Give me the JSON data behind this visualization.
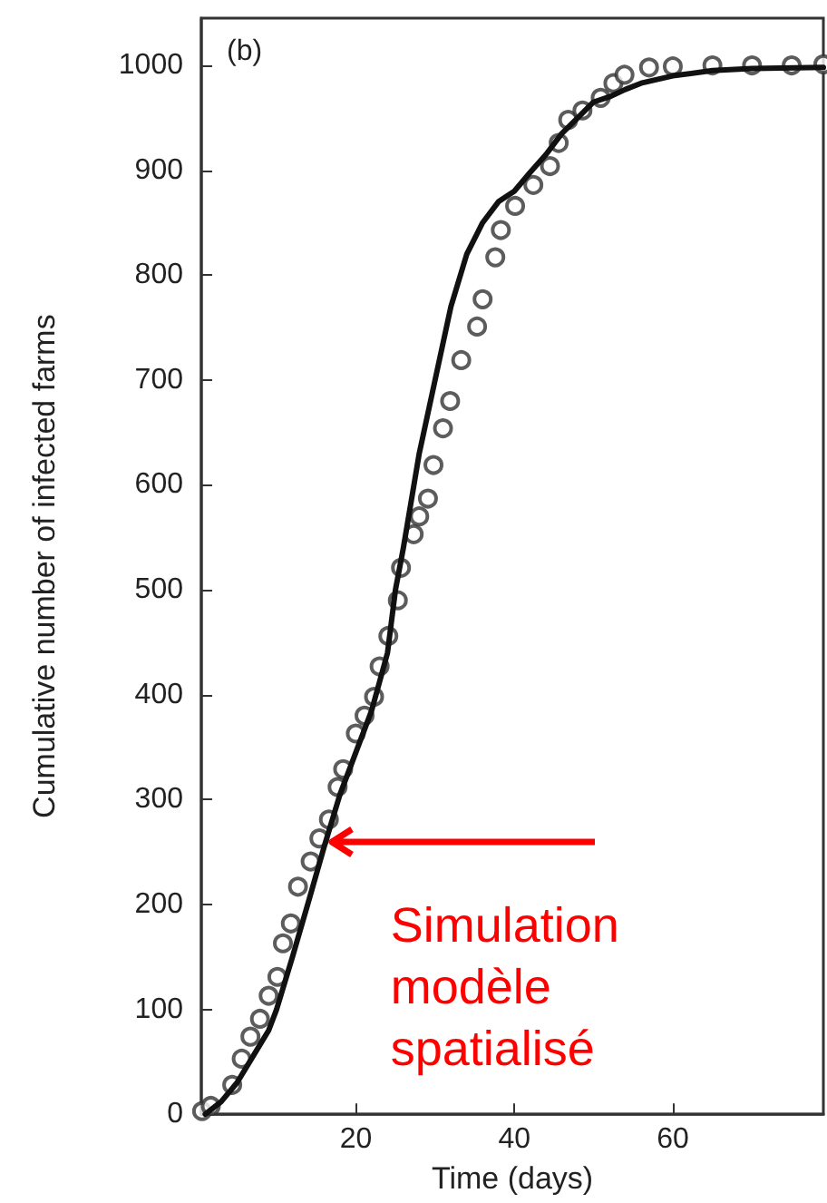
{
  "chart_data": {
    "type": "line",
    "xlabel": "Time (days)",
    "ylabel": "Cumulative number of infected farms",
    "xlim": [
      0.5,
      79
    ],
    "xticks": [
      20,
      40,
      60
    ],
    "ylim": [
      0,
      1045
    ],
    "yticks": [
      0,
      100,
      200,
      300,
      400,
      500,
      600,
      700,
      800,
      900,
      1000
    ],
    "grid": false,
    "annotations": [
      "(b)",
      {
        "text": "Simulation modèle spatialisé",
        "x": 16.6,
        "y": 260
      }
    ],
    "series": [
      {
        "type": "scatter",
        "marker": "circle",
        "color": "#333333",
        "x": [
          0.6,
          1.7,
          4.4,
          5.6,
          6.7,
          7.9,
          9,
          10.1,
          10.8,
          11.8,
          12.7,
          14.3,
          15.4,
          16.6,
          17.7,
          18.4,
          20,
          21.1,
          22.3,
          23,
          24.1,
          25.3,
          25.7,
          27.3,
          28,
          29.1,
          29.8,
          31,
          31.9,
          33.3,
          35.3,
          36,
          37.6,
          38.3,
          40.1,
          42.4,
          44.5,
          45.6,
          46.8,
          48.6,
          50.9,
          52.5,
          53.9,
          57,
          60,
          65,
          70,
          75,
          79
        ],
        "values": [
          3,
          8,
          28,
          53,
          74,
          91,
          113,
          131,
          163,
          182,
          217,
          241,
          263,
          281,
          312,
          329,
          363,
          380,
          398,
          427,
          456,
          490,
          521,
          553,
          570,
          587,
          619,
          654,
          680,
          719,
          751,
          777,
          817,
          843,
          866,
          886,
          904,
          926,
          948,
          957,
          969,
          983,
          991,
          998,
          999,
          1000,
          1000,
          1000,
          1001
        ]
      },
      {
        "marker": "none",
        "line_style": "solid",
        "color": "#111111",
        "x": [
          1,
          3,
          5,
          7,
          9,
          10,
          12,
          14,
          16,
          18,
          20,
          22,
          24,
          25,
          26,
          28,
          30,
          32,
          34,
          36,
          38,
          40,
          42,
          44,
          46,
          48,
          50,
          52,
          54,
          56,
          60,
          65,
          70,
          79
        ],
        "values": [
          0,
          12,
          30,
          55,
          80,
          100,
          150,
          202,
          255,
          305,
          345,
          385,
          440,
          500,
          540,
          630,
          700,
          770,
          820,
          850,
          870,
          880,
          898,
          915,
          935,
          950,
          965,
          970,
          977,
          983,
          990,
          995,
          997,
          998
        ]
      }
    ]
  }
}
